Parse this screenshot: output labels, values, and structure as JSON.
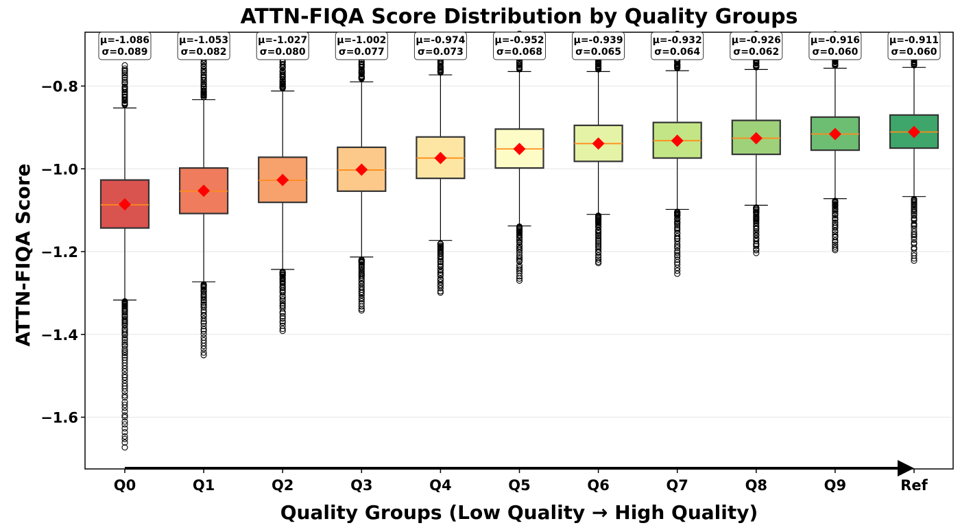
{
  "chart_data": {
    "type": "box",
    "title": "ATTN-FIQA Score Distribution by Quality Groups",
    "xlabel": "Quality Groups (Low Quality → High Quality)",
    "ylabel": "ATTN-FIQA Score",
    "ylim": [
      -1.725,
      -0.67
    ],
    "yticks": [
      -0.8,
      -1.0,
      -1.2,
      -1.4,
      -1.6
    ],
    "ytick_labels": [
      "−0.8",
      "−1.0",
      "−1.2",
      "−1.4",
      "−1.6"
    ],
    "grid": "horizontal",
    "categories": [
      "Q0",
      "Q1",
      "Q2",
      "Q3",
      "Q4",
      "Q5",
      "Q6",
      "Q7",
      "Q8",
      "Q9",
      "Ref"
    ],
    "means": [
      -1.086,
      -1.053,
      -1.027,
      -1.002,
      -0.974,
      -0.952,
      -0.939,
      -0.932,
      -0.926,
      -0.916,
      -0.911
    ],
    "stds": [
      0.089,
      0.082,
      0.08,
      0.077,
      0.073,
      0.068,
      0.065,
      0.064,
      0.062,
      0.06,
      0.06
    ],
    "annotations": [
      {
        "mean": "μ=-1.086",
        "std": "σ=0.089"
      },
      {
        "mean": "μ=-1.053",
        "std": "σ=0.082"
      },
      {
        "mean": "μ=-1.027",
        "std": "σ=0.080"
      },
      {
        "mean": "μ=-1.002",
        "std": "σ=0.077"
      },
      {
        "mean": "μ=-0.974",
        "std": "σ=0.073"
      },
      {
        "mean": "μ=-0.952",
        "std": "σ=0.068"
      },
      {
        "mean": "μ=-0.939",
        "std": "σ=0.065"
      },
      {
        "mean": "μ=-0.932",
        "std": "σ=0.064"
      },
      {
        "mean": "μ=-0.926",
        "std": "σ=0.062"
      },
      {
        "mean": "μ=-0.916",
        "std": "σ=0.060"
      },
      {
        "mean": "μ=-0.911",
        "std": "σ=0.060"
      }
    ],
    "boxes": [
      {
        "q1": -1.143,
        "median": -1.087,
        "q3": -1.027,
        "whisker_low": -1.317,
        "whisker_high": -0.853,
        "outlier_low_range": [
          -1.32,
          -1.672
        ],
        "outlier_high_range": [
          -0.845,
          -0.752
        ]
      },
      {
        "q1": -1.108,
        "median": -1.054,
        "q3": -0.998,
        "whisker_low": -1.273,
        "whisker_high": -0.833,
        "outlier_low_range": [
          -1.28,
          -1.452
        ],
        "outlier_high_range": [
          -0.825,
          -0.732
        ]
      },
      {
        "q1": -1.081,
        "median": -1.028,
        "q3": -0.972,
        "whisker_low": -1.243,
        "whisker_high": -0.812,
        "outlier_low_range": [
          -1.25,
          -1.392
        ],
        "outlier_high_range": [
          -0.805,
          -0.736
        ]
      },
      {
        "q1": -1.054,
        "median": -1.003,
        "q3": -0.948,
        "whisker_low": -1.213,
        "whisker_high": -0.79,
        "outlier_low_range": [
          -1.22,
          -1.342
        ],
        "outlier_high_range": [
          -0.783,
          -0.7
        ]
      },
      {
        "q1": -1.023,
        "median": -0.974,
        "q3": -0.923,
        "whisker_low": -1.173,
        "whisker_high": -0.773,
        "outlier_low_range": [
          -1.18,
          -1.3
        ],
        "outlier_high_range": [
          -0.766,
          -0.677
        ]
      },
      {
        "q1": -0.998,
        "median": -0.952,
        "q3": -0.904,
        "whisker_low": -1.138,
        "whisker_high": -0.765,
        "outlier_low_range": [
          -1.14,
          -1.27
        ],
        "outlier_high_range": [
          -0.758,
          -0.675
        ]
      },
      {
        "q1": -0.982,
        "median": -0.939,
        "q3": -0.895,
        "whisker_low": -1.11,
        "whisker_high": -0.765,
        "outlier_low_range": [
          -1.115,
          -1.228
        ],
        "outlier_high_range": [
          -0.758,
          -0.675
        ]
      },
      {
        "q1": -0.974,
        "median": -0.932,
        "q3": -0.888,
        "whisker_low": -1.098,
        "whisker_high": -0.763,
        "outlier_low_range": [
          -1.105,
          -1.252
        ],
        "outlier_high_range": [
          -0.756,
          -0.672
        ]
      },
      {
        "q1": -0.965,
        "median": -0.926,
        "q3": -0.883,
        "whisker_low": -1.088,
        "whisker_high": -0.76,
        "outlier_low_range": [
          -1.095,
          -1.203
        ],
        "outlier_high_range": [
          -0.753,
          -0.675
        ]
      },
      {
        "q1": -0.955,
        "median": -0.916,
        "q3": -0.875,
        "whisker_low": -1.072,
        "whisker_high": -0.757,
        "outlier_low_range": [
          -1.078,
          -1.198
        ],
        "outlier_high_range": [
          -0.75,
          -0.675
        ]
      },
      {
        "q1": -0.95,
        "median": -0.911,
        "q3": -0.87,
        "whisker_low": -1.067,
        "whisker_high": -0.755,
        "outlier_low_range": [
          -1.073,
          -1.222
        ],
        "outlier_high_range": [
          -0.748,
          -0.68
        ]
      }
    ],
    "colors": {
      "boxes": [
        "#d9534f",
        "#ef7c5c",
        "#f7a16c",
        "#fcc98a",
        "#fde6a4",
        "#fefcc6",
        "#e4f3a6",
        "#c4e585",
        "#9fd17a",
        "#6dbd72",
        "#3ea66a"
      ],
      "median": "#ff8c1a",
      "mean_marker": "#ff0000",
      "box_edge": "#333333",
      "grid": "#e6e6e6"
    },
    "mean_marker": "diamond",
    "arrow": "left-to-right along x-axis"
  }
}
